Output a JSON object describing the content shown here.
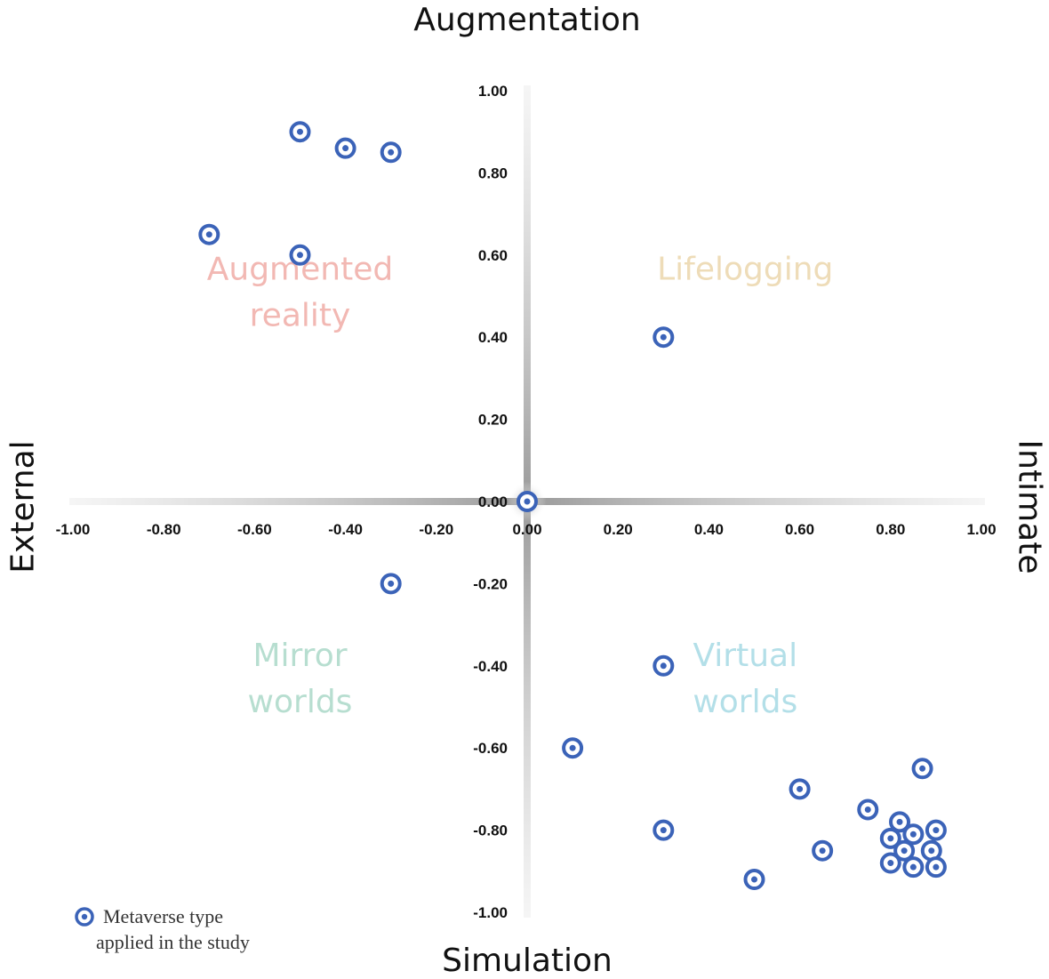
{
  "chart_data": {
    "type": "scatter",
    "xlim": [
      -1.0,
      1.0
    ],
    "ylim": [
      -1.0,
      1.0
    ],
    "grid": false,
    "axis_titles": {
      "top": "Augmentation",
      "bottom": "Simulation",
      "left": "External",
      "right": "Intimate"
    },
    "x_ticks": [
      "-1.00",
      "-0.80",
      "-0.60",
      "-0.40",
      "-0.20",
      "0.00",
      "0.20",
      "0.40",
      "0.60",
      "0.80",
      "1.00"
    ],
    "y_ticks": [
      "1.00",
      "0.80",
      "0.60",
      "0.40",
      "0.20",
      "0.00",
      "-0.20",
      "-0.40",
      "-0.60",
      "-0.80",
      "-1.00"
    ],
    "quadrants": [
      {
        "lines": [
          "Augmented",
          "reality"
        ],
        "color": "#f2b8b3",
        "x": -0.5,
        "y": 0.54
      },
      {
        "lines": [
          "Lifelogging"
        ],
        "color": "#eedcb8",
        "x": 0.48,
        "y": 0.54
      },
      {
        "lines": [
          "Mirror",
          "worlds"
        ],
        "color": "#b7ded0",
        "x": -0.5,
        "y": -0.4
      },
      {
        "lines": [
          "Virtual",
          "worlds"
        ],
        "color": "#b3dfe8",
        "x": 0.48,
        "y": -0.4
      }
    ],
    "series": [
      {
        "name": "Metaverse type applied in the study",
        "color": "#3b63b8",
        "points": [
          {
            "x": -0.5,
            "y": 0.9
          },
          {
            "x": -0.4,
            "y": 0.86
          },
          {
            "x": -0.3,
            "y": 0.85
          },
          {
            "x": -0.7,
            "y": 0.65
          },
          {
            "x": -0.5,
            "y": 0.6
          },
          {
            "x": 0.3,
            "y": 0.4
          },
          {
            "x": 0.0,
            "y": 0.0
          },
          {
            "x": -0.3,
            "y": -0.2
          },
          {
            "x": 0.3,
            "y": -0.4
          },
          {
            "x": 0.1,
            "y": -0.6
          },
          {
            "x": 0.87,
            "y": -0.65
          },
          {
            "x": 0.6,
            "y": -0.7
          },
          {
            "x": 0.75,
            "y": -0.75
          },
          {
            "x": 0.82,
            "y": -0.78
          },
          {
            "x": 0.3,
            "y": -0.8
          },
          {
            "x": 0.9,
            "y": -0.8
          },
          {
            "x": 0.8,
            "y": -0.82
          },
          {
            "x": 0.85,
            "y": -0.81
          },
          {
            "x": 0.65,
            "y": -0.85
          },
          {
            "x": 0.83,
            "y": -0.85
          },
          {
            "x": 0.89,
            "y": -0.85
          },
          {
            "x": 0.8,
            "y": -0.88
          },
          {
            "x": 0.85,
            "y": -0.89
          },
          {
            "x": 0.9,
            "y": -0.89
          },
          {
            "x": 0.5,
            "y": -0.92
          }
        ]
      }
    ],
    "legend": {
      "position": "bottom-left",
      "lines": [
        "Metaverse type",
        "applied in the study"
      ]
    }
  }
}
